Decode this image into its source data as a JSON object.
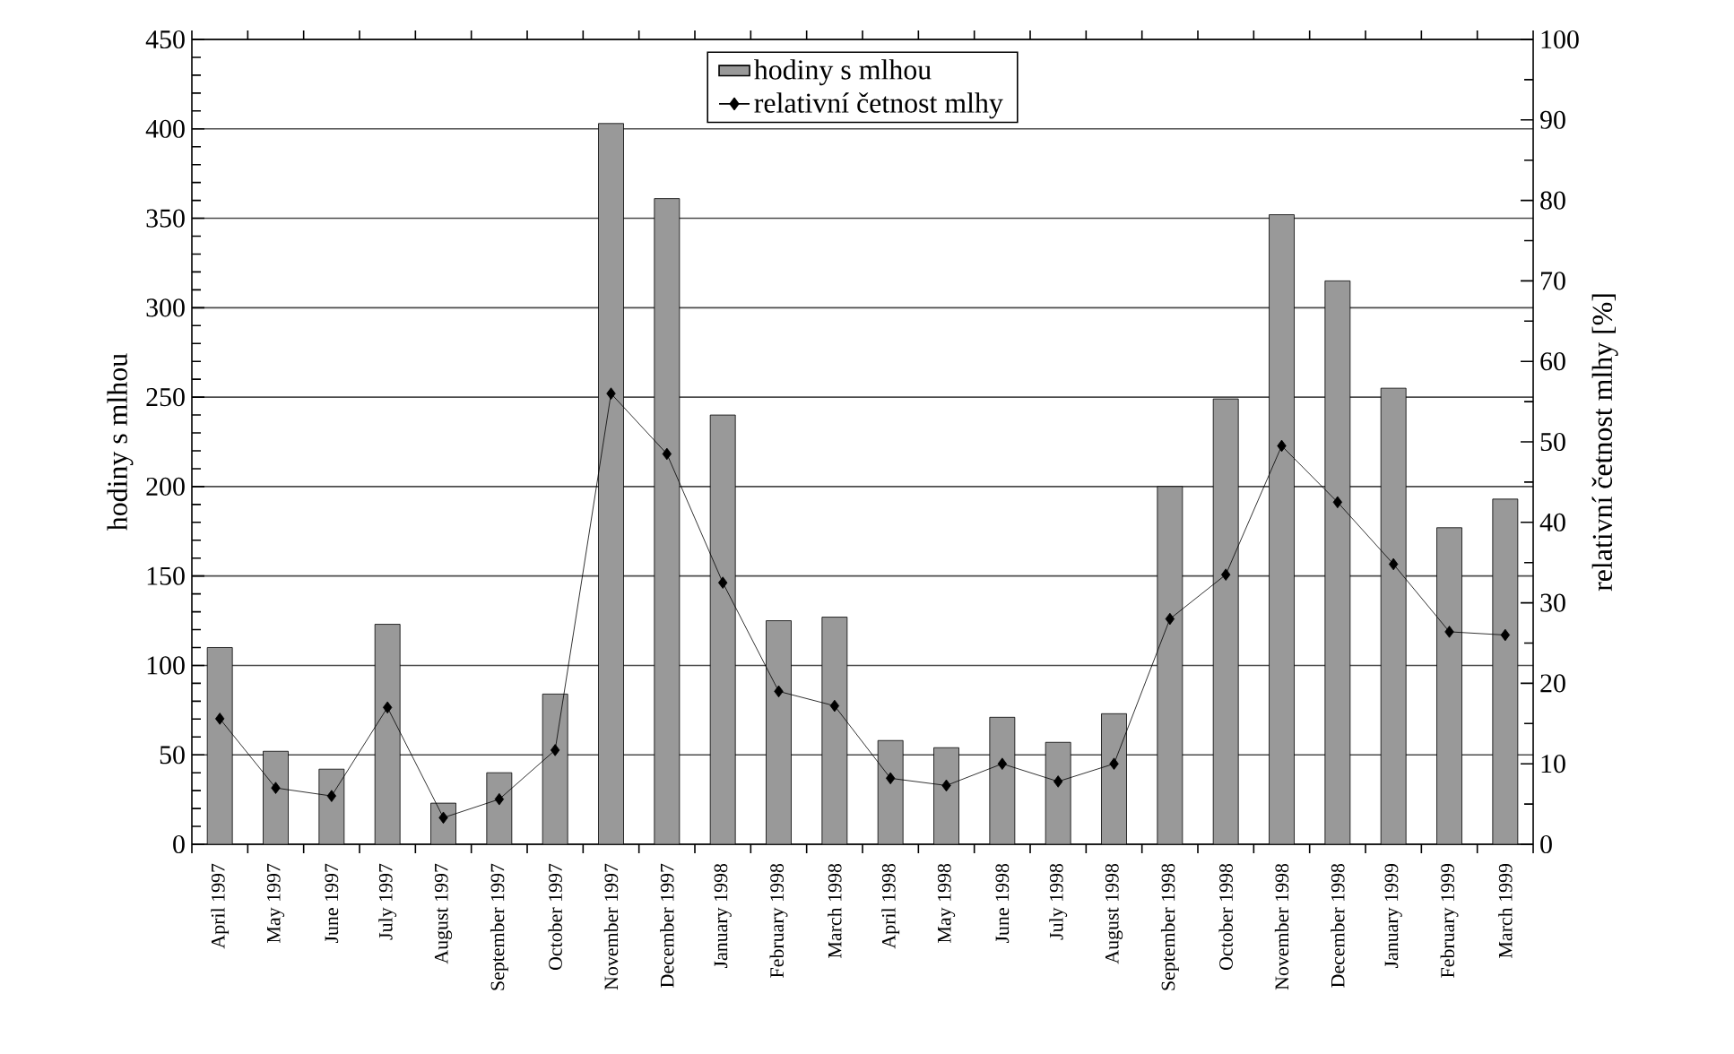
{
  "chart_data": {
    "type": "bar",
    "xlabel": null,
    "ylabel": "hodiny s mlhou",
    "y2label": "relativní četnost mlhy [%]",
    "categories": [
      "April 1997",
      "May 1997",
      "June 1997",
      "July 1997",
      "August 1997",
      "September 1997",
      "October 1997",
      "November 1997",
      "December 1997",
      "January 1998",
      "February 1998",
      "March 1998",
      "April 1998",
      "May 1998",
      "June 1998",
      "July 1998",
      "August 1998",
      "September 1998",
      "October 1998",
      "November 1998",
      "December 1998",
      "January 1999",
      "February 1999",
      "March 1999"
    ],
    "series": [
      {
        "name": "hodiny s mlhou",
        "color": "#999999",
        "values": [
          110,
          52,
          42,
          123,
          23,
          40,
          84,
          403,
          361,
          240,
          125,
          127,
          58,
          54,
          71,
          57,
          73,
          200,
          249,
          352,
          315,
          255,
          177,
          193
        ]
      },
      {
        "name": "relativní četnost mlhy",
        "type": "line",
        "axis": "y2",
        "color": "#000000",
        "marker": "diamond",
        "values": [
          15.6,
          7,
          6,
          17,
          3.3,
          5.6,
          11.7,
          56,
          48.5,
          32.5,
          19,
          17.2,
          8.2,
          7.3,
          10,
          7.8,
          10,
          28,
          33.5,
          49.5,
          42.5,
          34.8,
          26.4,
          26
        ]
      }
    ],
    "ylim": [
      0,
      450
    ],
    "yticks": [
      0,
      50,
      100,
      150,
      200,
      250,
      300,
      350,
      400,
      450
    ],
    "y2lim": [
      0,
      100
    ],
    "y2ticks": [
      0,
      10,
      20,
      30,
      40,
      50,
      60,
      70,
      80,
      90,
      100
    ],
    "grid": "y",
    "legend": "top"
  }
}
